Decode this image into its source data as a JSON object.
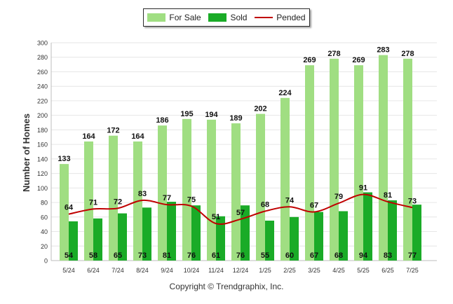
{
  "legend": {
    "for_sale": "For Sale",
    "sold": "Sold",
    "pended": "Pended"
  },
  "colors": {
    "for_sale": "#a0de82",
    "sold": "#1aab27",
    "pended": "#c00000"
  },
  "copyright": "Copyright © Trendgraphix, Inc.",
  "chart_data": {
    "type": "bar",
    "title": "",
    "xlabel": "",
    "ylabel": "Number of Homes",
    "ylim": [
      0,
      300
    ],
    "yticks": [
      0,
      20,
      40,
      60,
      80,
      100,
      120,
      140,
      160,
      180,
      200,
      220,
      240,
      260,
      280,
      300
    ],
    "grid": true,
    "legend_position": "top-center",
    "categories": [
      "5/24",
      "6/24",
      "7/24",
      "8/24",
      "9/24",
      "10/24",
      "11/24",
      "12/24",
      "1/25",
      "2/25",
      "3/25",
      "4/25",
      "5/25",
      "6/25",
      "7/25"
    ],
    "series": [
      {
        "name": "For Sale",
        "kind": "bar",
        "values": [
          133,
          164,
          172,
          164,
          186,
          195,
          194,
          189,
          202,
          224,
          269,
          278,
          269,
          283,
          278
        ]
      },
      {
        "name": "Sold",
        "kind": "bar",
        "values": [
          54,
          58,
          65,
          73,
          81,
          76,
          61,
          76,
          55,
          60,
          67,
          68,
          94,
          83,
          77
        ]
      },
      {
        "name": "Pended",
        "kind": "line",
        "values": [
          64,
          71,
          72,
          83,
          77,
          75,
          51,
          57,
          68,
          74,
          67,
          79,
          91,
          81,
          73
        ]
      }
    ]
  }
}
